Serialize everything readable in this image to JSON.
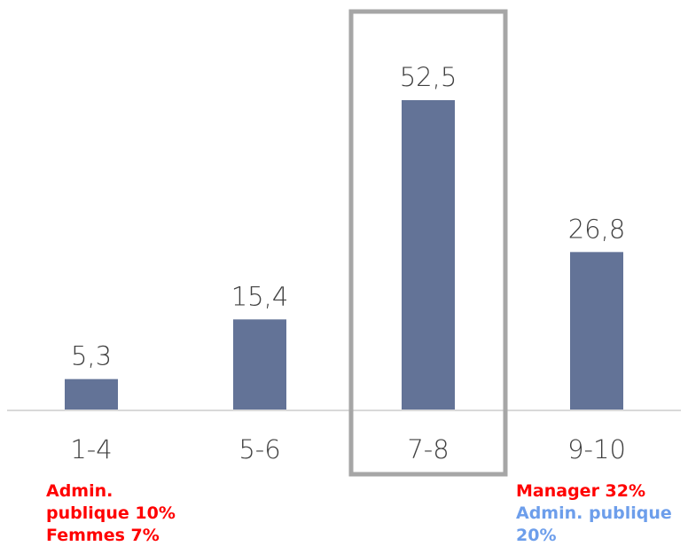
{
  "chart_data": {
    "type": "bar",
    "categories": [
      "1-4",
      "5-6",
      "7-8",
      "9-10"
    ],
    "values": [
      5.3,
      15.4,
      52.5,
      26.8
    ],
    "value_labels": [
      "5,3",
      "15,4",
      "52,5",
      "26,8"
    ],
    "ylim": [
      0,
      60
    ],
    "highlighted_category": "7-8",
    "grid": false,
    "colors": {
      "bar": "#637397",
      "axis": "#d9d9d9",
      "highlight_box": "#a6a6a6"
    }
  },
  "notes": {
    "left": {
      "color": "#ff0000",
      "lines": [
        "Admin.",
        "publique 10%",
        "Femmes 7%"
      ]
    },
    "right": {
      "lines": [
        {
          "text": "Manager 32%",
          "color": "#ff0000"
        },
        {
          "text": "Admin. publique",
          "color": "#6d9eeb"
        },
        {
          "text": "20%",
          "color": "#6d9eeb"
        }
      ]
    }
  }
}
